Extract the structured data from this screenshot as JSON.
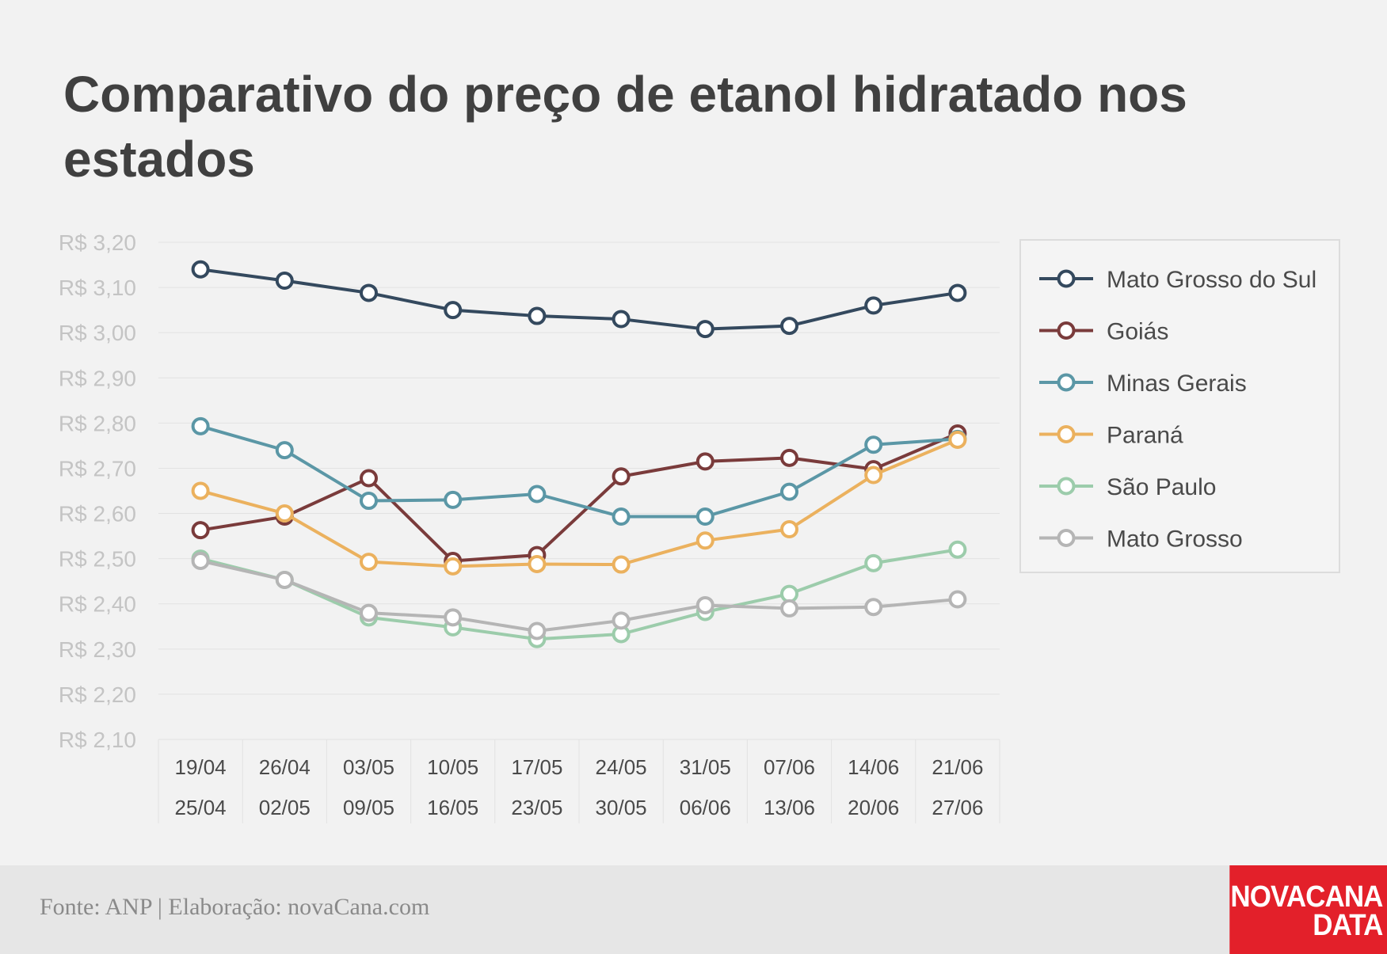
{
  "chart_data": {
    "type": "line",
    "title": "Comparativo do preço de etanol hidratado nos estados",
    "categories": [
      [
        "19/04",
        "25/04"
      ],
      [
        "26/04",
        "02/05"
      ],
      [
        "03/05",
        "09/05"
      ],
      [
        "10/05",
        "16/05"
      ],
      [
        "17/05",
        "23/05"
      ],
      [
        "24/05",
        "30/05"
      ],
      [
        "31/05",
        "06/06"
      ],
      [
        "07/06",
        "13/06"
      ],
      [
        "14/06",
        "20/06"
      ],
      [
        "21/06",
        "27/06"
      ]
    ],
    "y_ticks": [
      "R$ 3,20",
      "R$ 3,10",
      "R$ 3,00",
      "R$ 2,90",
      "R$ 2,80",
      "R$ 2,70",
      "R$ 2,60",
      "R$ 2,50",
      "R$ 2,40",
      "R$ 2,30",
      "R$ 2,20",
      "R$ 2,10"
    ],
    "ylim": [
      2.1,
      3.2
    ],
    "grid": true,
    "legend_position": "right",
    "series": [
      {
        "name": "Mato Grosso do Sul",
        "color": "#34495e",
        "values": [
          3.14,
          3.115,
          3.088,
          3.05,
          3.037,
          3.03,
          3.008,
          3.015,
          3.06,
          3.088
        ]
      },
      {
        "name": "Goiás",
        "color": "#7a3b3b",
        "values": [
          2.563,
          2.593,
          2.678,
          2.495,
          2.508,
          2.682,
          2.715,
          2.723,
          2.698,
          2.777
        ]
      },
      {
        "name": "Minas Gerais",
        "color": "#5b97a6",
        "values": [
          2.793,
          2.74,
          2.628,
          2.63,
          2.643,
          2.593,
          2.593,
          2.648,
          2.752,
          2.765
        ]
      },
      {
        "name": "Paraná",
        "color": "#ebb15e",
        "values": [
          2.65,
          2.6,
          2.493,
          2.483,
          2.488,
          2.487,
          2.54,
          2.565,
          2.685,
          2.763
        ]
      },
      {
        "name": "São Paulo",
        "color": "#9cccab",
        "values": [
          2.5,
          2.453,
          2.37,
          2.348,
          2.322,
          2.333,
          2.382,
          2.422,
          2.49,
          2.52
        ]
      },
      {
        "name": "Mato Grosso",
        "color": "#b5b5b5",
        "values": [
          2.495,
          2.453,
          2.38,
          2.37,
          2.34,
          2.363,
          2.397,
          2.39,
          2.393,
          2.41
        ]
      }
    ]
  },
  "footer": {
    "source": "Fonte: ANP | Elaboração: novaCana.com",
    "logo_line1": "NOVACANA",
    "logo_line2": "DATA"
  }
}
